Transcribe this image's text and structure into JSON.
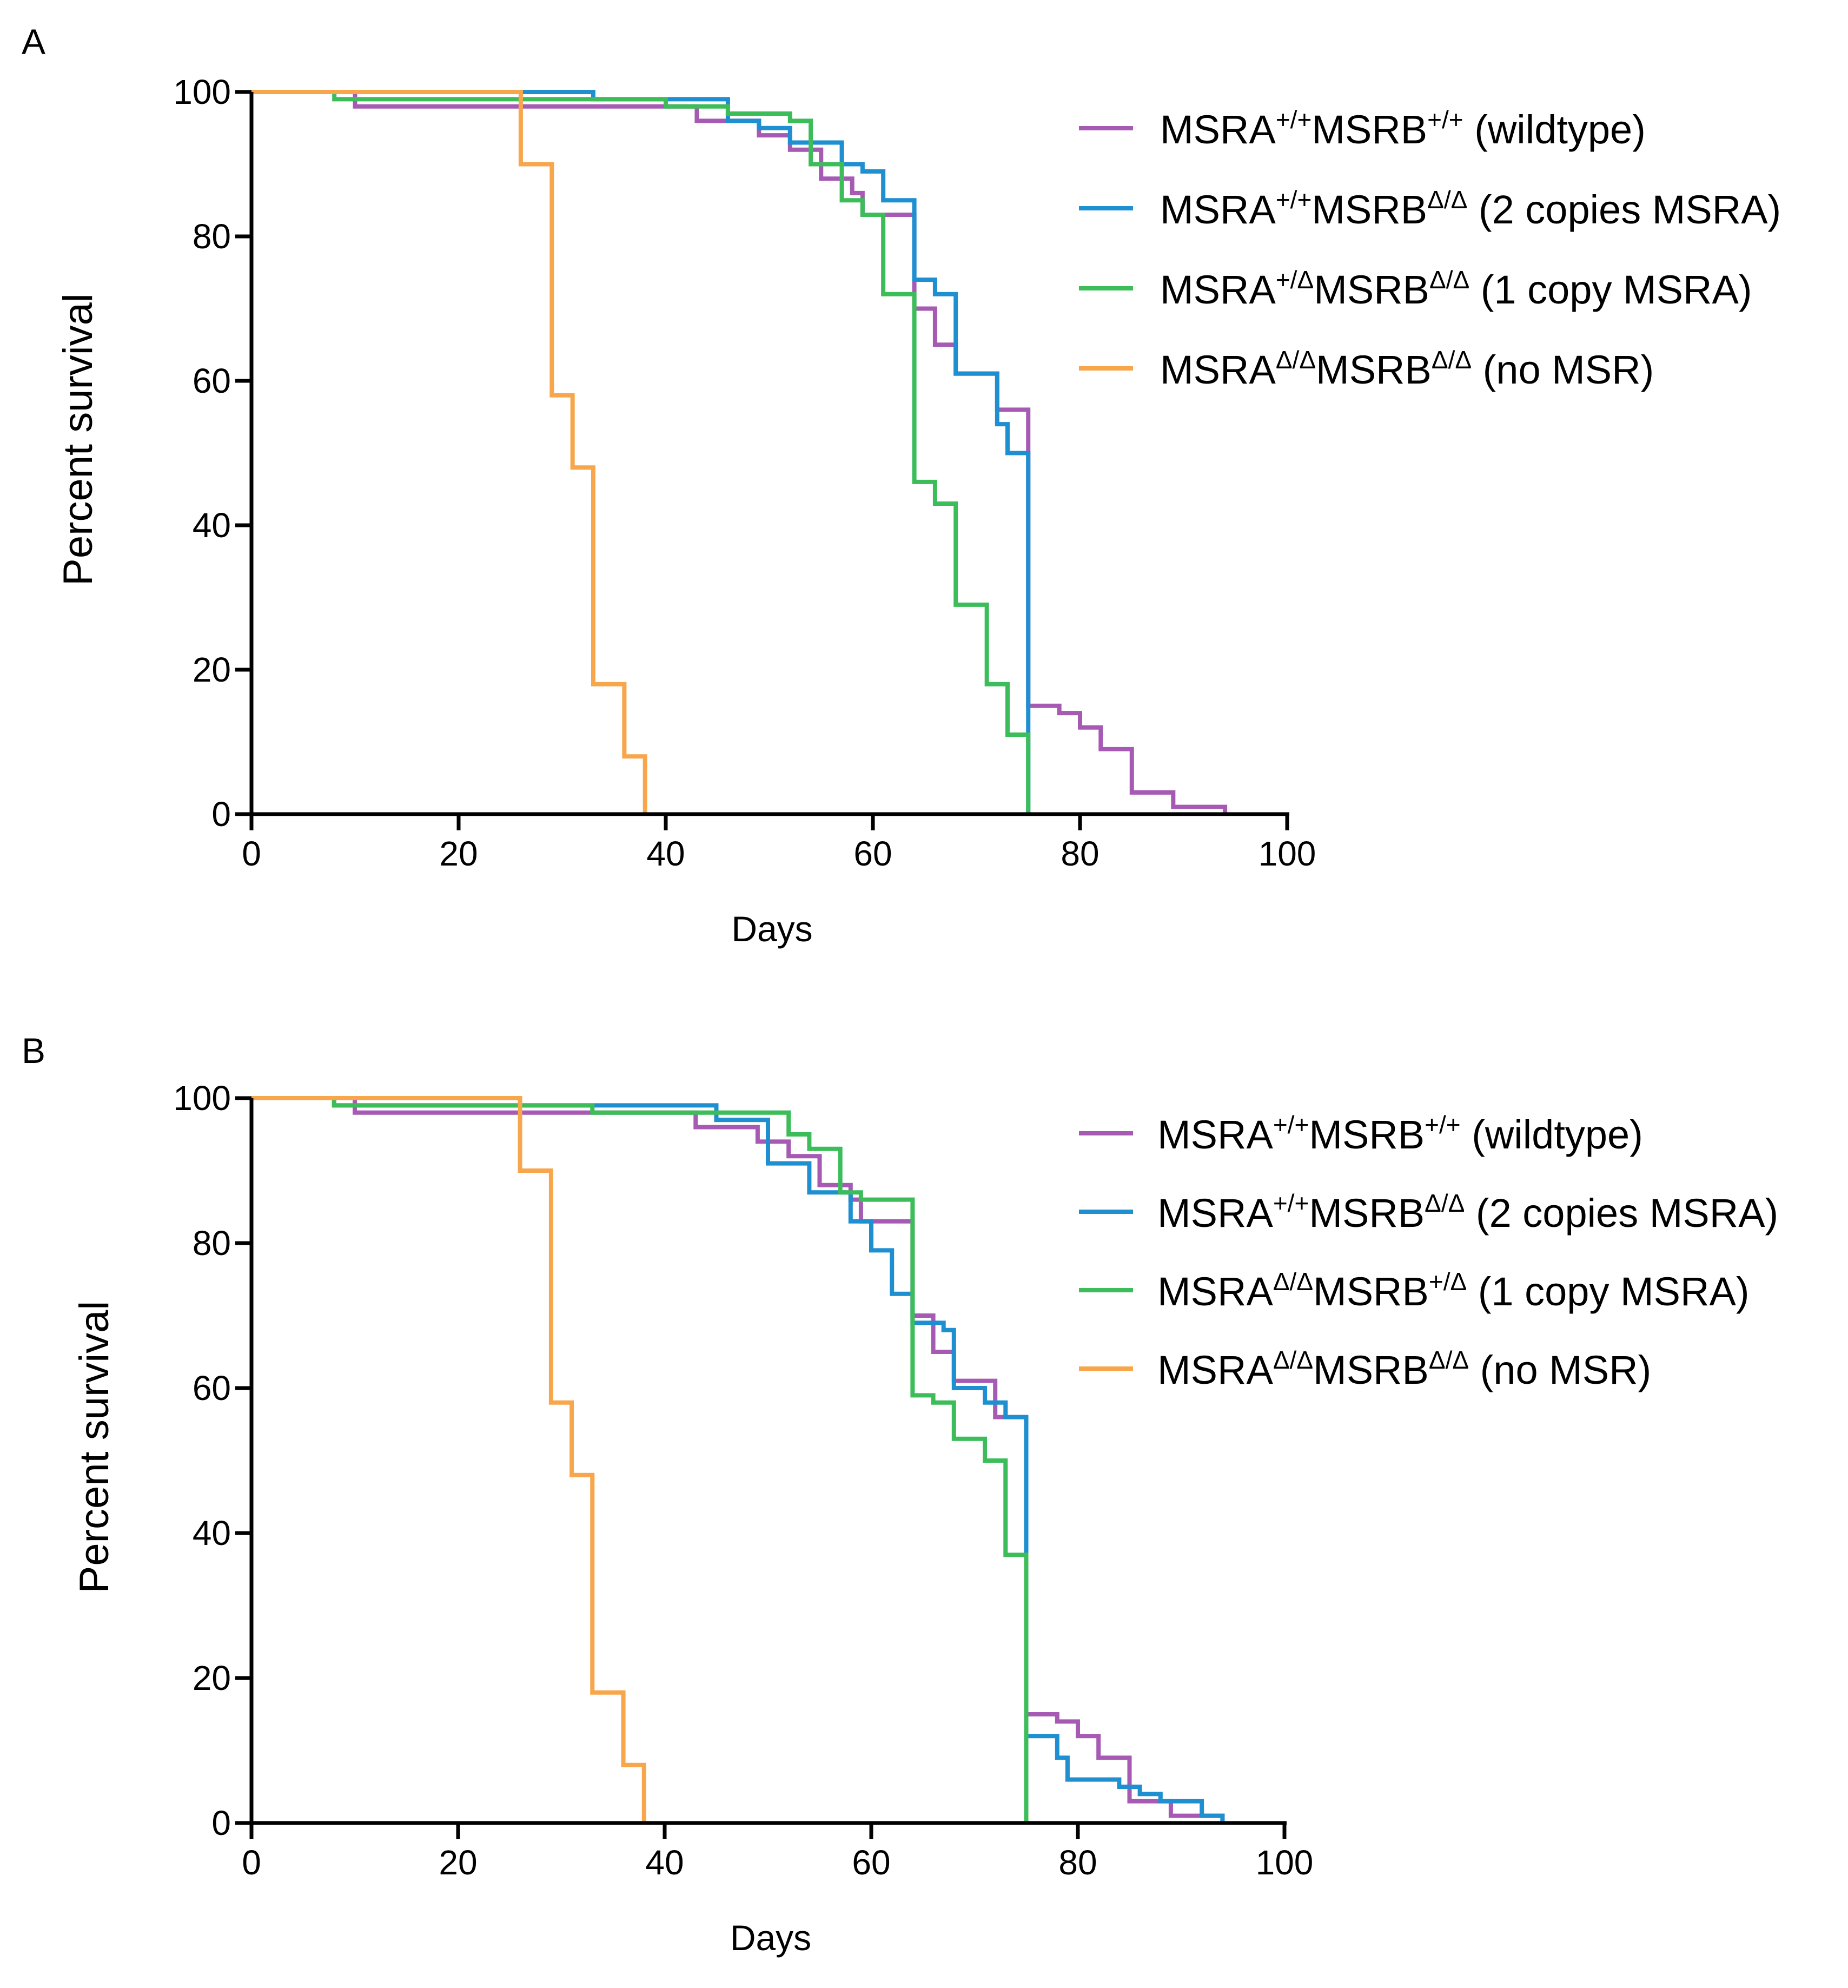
{
  "chart_data": [
    {
      "type": "line",
      "panel_label": "A",
      "xlabel": "Days",
      "ylabel": "Percent survival",
      "xlim": [
        0,
        100
      ],
      "ylim": [
        0,
        100
      ],
      "xticks": [
        0,
        20,
        40,
        60,
        80,
        100
      ],
      "yticks": [
        0,
        20,
        40,
        60,
        80,
        100
      ],
      "legend_position": "top-right",
      "series": [
        {
          "name": "wildtype",
          "legend": {
            "a": "MSRA",
            "a_sup": "+/+",
            "b": "MSRB",
            "b_sup": "+/+",
            "desc": "(wildtype)"
          },
          "color": "#A65AB4",
          "steps": [
            [
              0,
              100
            ],
            [
              10,
              98
            ],
            [
              43,
              96
            ],
            [
              49,
              94
            ],
            [
              52,
              92
            ],
            [
              55,
              88
            ],
            [
              58,
              86
            ],
            [
              59,
              83
            ],
            [
              64,
              70
            ],
            [
              66,
              65
            ],
            [
              68,
              61
            ],
            [
              72,
              56
            ],
            [
              75,
              55
            ],
            [
              75,
              15
            ],
            [
              78,
              14
            ],
            [
              80,
              12
            ],
            [
              82,
              9
            ],
            [
              85,
              3
            ],
            [
              89,
              1
            ],
            [
              94,
              0
            ]
          ]
        },
        {
          "name": "2 copies MSRA",
          "legend": {
            "a": "MSRA",
            "a_sup": "+/+",
            "b": "MSRB",
            "b_sup": "Δ/Δ",
            "desc": "(2 copies MSRA)"
          },
          "color": "#1E8FD0",
          "steps": [
            [
              0,
              100
            ],
            [
              33,
              99
            ],
            [
              46,
              96
            ],
            [
              49,
              95
            ],
            [
              52,
              93
            ],
            [
              57,
              90
            ],
            [
              59,
              89
            ],
            [
              61,
              85
            ],
            [
              64,
              74
            ],
            [
              66,
              72
            ],
            [
              68,
              61
            ],
            [
              72,
              54
            ],
            [
              73,
              50
            ],
            [
              75,
              12
            ],
            [
              75,
              0
            ]
          ]
        },
        {
          "name": "1 copy MSRA",
          "legend": {
            "a": "MSRA",
            "a_sup": "+/Δ",
            "b": "MSRB",
            "b_sup": "Δ/Δ",
            "desc": "(1 copy MSRA)"
          },
          "color": "#3DBD5A",
          "steps": [
            [
              0,
              100
            ],
            [
              8,
              99
            ],
            [
              40,
              98
            ],
            [
              46,
              97
            ],
            [
              52,
              96
            ],
            [
              54,
              90
            ],
            [
              57,
              85
            ],
            [
              59,
              83
            ],
            [
              61,
              72
            ],
            [
              64,
              46
            ],
            [
              66,
              43
            ],
            [
              68,
              29
            ],
            [
              71,
              18
            ],
            [
              73,
              11
            ],
            [
              75,
              0
            ]
          ]
        },
        {
          "name": "no MSR",
          "legend": {
            "a": "MSRA",
            "a_sup": "Δ/Δ",
            "b": "MSRB",
            "b_sup": "Δ/Δ",
            "desc": "(no MSR)"
          },
          "color": "#F8A64B",
          "steps": [
            [
              0,
              100
            ],
            [
              26,
              90
            ],
            [
              29,
              58
            ],
            [
              31,
              48
            ],
            [
              33,
              18
            ],
            [
              36,
              8
            ],
            [
              38,
              0
            ]
          ]
        }
      ]
    },
    {
      "type": "line",
      "panel_label": "B",
      "xlabel": "Days",
      "ylabel": "Percent survival",
      "xlim": [
        0,
        100
      ],
      "ylim": [
        0,
        100
      ],
      "xticks": [
        0,
        20,
        40,
        60,
        80,
        100
      ],
      "yticks": [
        0,
        20,
        40,
        60,
        80,
        100
      ],
      "legend_position": "top-right",
      "series": [
        {
          "name": "wildtype",
          "legend": {
            "a": "MSRA",
            "a_sup": "+/+",
            "b": "MSRB",
            "b_sup": "+/+",
            "desc": "(wildtype)"
          },
          "color": "#A65AB4",
          "steps": [
            [
              0,
              100
            ],
            [
              10,
              98
            ],
            [
              43,
              96
            ],
            [
              49,
              94
            ],
            [
              52,
              92
            ],
            [
              55,
              88
            ],
            [
              58,
              86
            ],
            [
              59,
              83
            ],
            [
              64,
              70
            ],
            [
              66,
              65
            ],
            [
              68,
              61
            ],
            [
              72,
              56
            ],
            [
              75,
              55
            ],
            [
              75,
              15
            ],
            [
              78,
              14
            ],
            [
              80,
              12
            ],
            [
              82,
              9
            ],
            [
              85,
              3
            ],
            [
              89,
              1
            ],
            [
              94,
              0
            ]
          ]
        },
        {
          "name": "2 copies MSRA",
          "legend": {
            "a": "MSRA",
            "a_sup": "+/+",
            "b": "MSRB",
            "b_sup": "Δ/Δ",
            "desc": "(2 copies MSRA)"
          },
          "color": "#1E8FD0",
          "steps": [
            [
              0,
              100
            ],
            [
              8,
              99
            ],
            [
              45,
              97
            ],
            [
              50,
              91
            ],
            [
              54,
              87
            ],
            [
              58,
              83
            ],
            [
              60,
              79
            ],
            [
              62,
              73
            ],
            [
              64,
              69
            ],
            [
              67,
              68
            ],
            [
              68,
              60
            ],
            [
              71,
              58
            ],
            [
              73,
              56
            ],
            [
              75,
              12
            ],
            [
              78,
              9
            ],
            [
              79,
              6
            ],
            [
              84,
              5
            ],
            [
              86,
              4
            ],
            [
              88,
              3
            ],
            [
              92,
              1
            ],
            [
              94,
              0
            ]
          ]
        },
        {
          "name": "1 copy MSRA",
          "legend": {
            "a": "MSRA",
            "a_sup": "Δ/Δ",
            "b": "MSRB",
            "b_sup": "+/Δ",
            "desc": "(1 copy MSRA)"
          },
          "color": "#3DBD5A",
          "steps": [
            [
              0,
              100
            ],
            [
              8,
              99
            ],
            [
              33,
              98
            ],
            [
              47,
              98
            ],
            [
              52,
              95
            ],
            [
              54,
              93
            ],
            [
              57,
              87
            ],
            [
              59,
              86
            ],
            [
              64,
              59
            ],
            [
              66,
              58
            ],
            [
              68,
              53
            ],
            [
              71,
              50
            ],
            [
              73,
              37
            ],
            [
              75,
              0
            ]
          ]
        },
        {
          "name": "no MSR",
          "legend": {
            "a": "MSRA",
            "a_sup": "Δ/Δ",
            "b": "MSRB",
            "b_sup": "Δ/Δ",
            "desc": "(no MSR)"
          },
          "color": "#F8A64B",
          "steps": [
            [
              0,
              100
            ],
            [
              26,
              90
            ],
            [
              29,
              58
            ],
            [
              31,
              48
            ],
            [
              33,
              18
            ],
            [
              36,
              8
            ],
            [
              38,
              0
            ]
          ]
        }
      ]
    }
  ]
}
